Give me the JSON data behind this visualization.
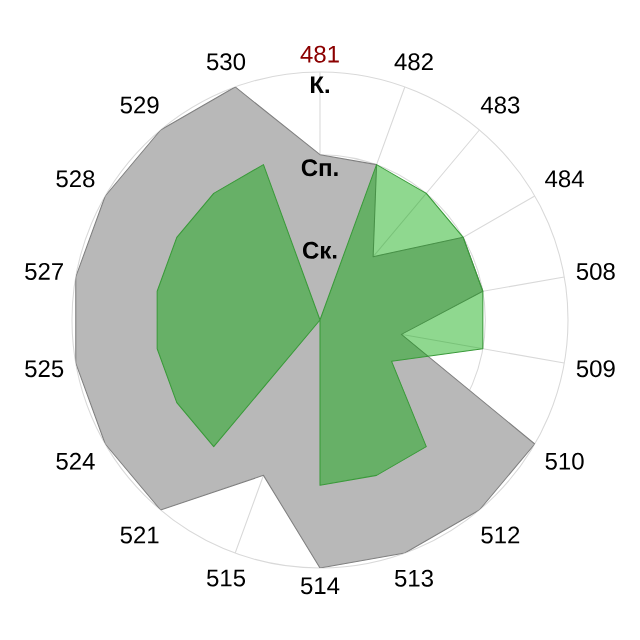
{
  "chart_data": {
    "type": "radar",
    "categories": [
      "481",
      "482",
      "483",
      "484",
      "508",
      "509",
      "510",
      "512",
      "513",
      "514",
      "515",
      "521",
      "524",
      "525",
      "527",
      "528",
      "529",
      "530"
    ],
    "series": [
      {
        "color": "#b8b8b8",
        "values": [
          2,
          2,
          1,
          2,
          2,
          1,
          3,
          3,
          3,
          3,
          2,
          3,
          3,
          3,
          3,
          3,
          3,
          3
        ]
      },
      {
        "color": "#00a600",
        "values": [
          0,
          2,
          2,
          2,
          2,
          2,
          1,
          2,
          2,
          2,
          0,
          2,
          2,
          2,
          2,
          2,
          2,
          2
        ]
      }
    ],
    "ylim": [
      0,
      3
    ],
    "yticks": [
      {
        "value": 1,
        "label": "Ск."
      },
      {
        "value": 2,
        "label": "Сп."
      },
      {
        "value": 3,
        "label": "К."
      }
    ],
    "grid": true
  }
}
